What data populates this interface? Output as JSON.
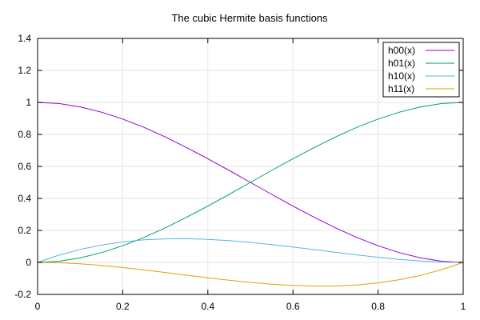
{
  "chart_data": {
    "type": "line",
    "title": "The cubic Hermite basis functions",
    "xlabel": "",
    "ylabel": "",
    "xlim": [
      0,
      1
    ],
    "ylim": [
      -0.2,
      1.4
    ],
    "xticks": [
      0,
      0.2,
      0.4,
      0.6,
      0.8,
      1
    ],
    "xtick_labels": [
      "0",
      "0.2",
      "0.4",
      "0.6",
      "0.8",
      "1"
    ],
    "yticks": [
      -0.2,
      0,
      0.2,
      0.4,
      0.6,
      0.8,
      1,
      1.2,
      1.4
    ],
    "ytick_labels": [
      "-0.2",
      "0",
      "0.2",
      "0.4",
      "0.6",
      "0.8",
      "1",
      "1.2",
      "1.4"
    ],
    "grid": true,
    "legend_position": "top-right",
    "x": [
      0,
      0.05,
      0.1,
      0.15,
      0.2,
      0.25,
      0.3,
      0.35,
      0.4,
      0.45,
      0.5,
      0.55,
      0.6,
      0.65,
      0.7,
      0.75,
      0.8,
      0.85,
      0.9,
      0.95,
      1
    ],
    "series": [
      {
        "name": "h00(x)",
        "color": "#9400d3",
        "values": [
          1,
          0.993,
          0.972,
          0.939,
          0.896,
          0.844,
          0.784,
          0.718,
          0.648,
          0.575,
          0.5,
          0.425,
          0.352,
          0.282,
          0.216,
          0.156,
          0.104,
          0.061,
          0.028,
          0.007,
          0
        ]
      },
      {
        "name": "h01(x)",
        "color": "#009e73",
        "values": [
          0,
          0.007,
          0.028,
          0.061,
          0.104,
          0.156,
          0.216,
          0.282,
          0.352,
          0.425,
          0.5,
          0.575,
          0.648,
          0.718,
          0.784,
          0.844,
          0.896,
          0.939,
          0.972,
          0.993,
          1
        ]
      },
      {
        "name": "h10(x)",
        "color": "#56b4e9",
        "values": [
          0,
          0.045,
          0.081,
          0.108,
          0.128,
          0.141,
          0.147,
          0.148,
          0.144,
          0.136,
          0.125,
          0.111,
          0.096,
          0.08,
          0.063,
          0.047,
          0.032,
          0.019,
          0.009,
          0.002,
          0
        ]
      },
      {
        "name": "h11(x)",
        "color": "#e69f00",
        "values": [
          0,
          -0.002,
          -0.009,
          -0.019,
          -0.032,
          -0.047,
          -0.063,
          -0.08,
          -0.096,
          -0.111,
          -0.125,
          -0.136,
          -0.144,
          -0.148,
          -0.147,
          -0.141,
          -0.128,
          -0.108,
          -0.081,
          -0.045,
          0
        ]
      }
    ]
  }
}
